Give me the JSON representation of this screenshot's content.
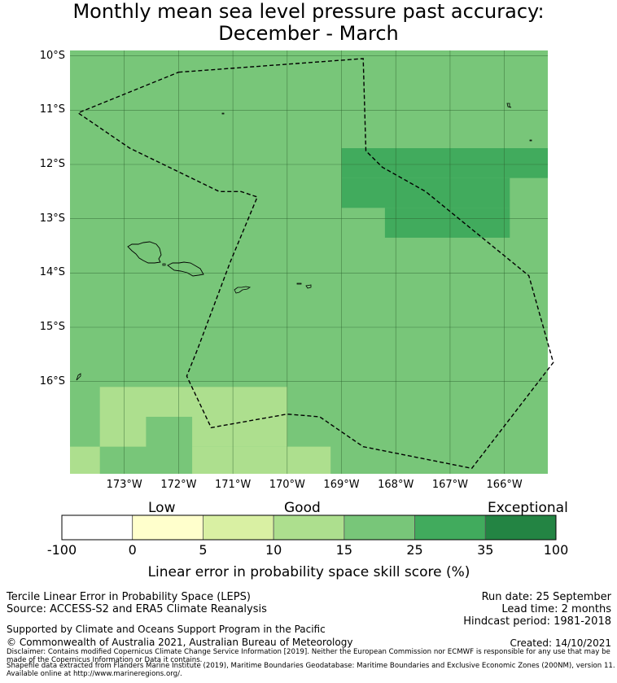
{
  "title": {
    "line1": "Monthly mean sea level pressure past accuracy:",
    "line2": "December - March"
  },
  "map": {
    "lat_labels": [
      "10°S",
      "11°S",
      "12°S",
      "13°S",
      "14°S",
      "15°S",
      "16°S"
    ],
    "lon_labels": [
      "173°W",
      "172°W",
      "171°W",
      "170°W",
      "169°W",
      "168°W",
      "167°W",
      "166°W"
    ],
    "extent": {
      "lon_min": -174.0,
      "lon_max": -165.2,
      "lat_north": -9.9,
      "lat_south": -17.7
    },
    "regions": [
      {
        "name": "exceptional-block-north",
        "lon": [
          -169.0,
          -165.2
        ],
        "lat": [
          -11.7,
          -12.25
        ],
        "colour": "#41ab5d"
      },
      {
        "name": "exceptional-block-west",
        "lon": [
          -169.0,
          -165.9
        ],
        "lat": [
          -12.25,
          -12.8
        ],
        "colour": "#41ab5d"
      },
      {
        "name": "exceptional-block-south",
        "lon": [
          -168.2,
          -165.9
        ],
        "lat": [
          -12.8,
          -13.35
        ],
        "colour": "#41ab5d"
      },
      {
        "name": "good-block-top",
        "lon": [
          -173.45,
          -170.0
        ],
        "lat": [
          -16.1,
          -16.65
        ],
        "colour": "#addf8e"
      },
      {
        "name": "good-block-left",
        "lon": [
          -173.45,
          -172.6
        ],
        "lat": [
          -16.65,
          -17.2
        ],
        "colour": "#addf8e"
      },
      {
        "name": "good-block-right",
        "lon": [
          -171.75,
          -170.0
        ],
        "lat": [
          -16.65,
          -17.2
        ],
        "colour": "#addf8e"
      },
      {
        "name": "good-block-bottom-right",
        "lon": [
          -171.75,
          -169.2
        ],
        "lat": [
          -17.2,
          -17.7
        ],
        "colour": "#addf8e"
      },
      {
        "name": "good-block-bottom-left",
        "lon": [
          -174.0,
          -173.45
        ],
        "lat": [
          -17.2,
          -17.7
        ],
        "colour": "#addf8e"
      }
    ],
    "eez_boundary": [
      [
        -172.0,
        -10.3
      ],
      [
        -168.6,
        -10.05
      ],
      [
        -168.55,
        -11.75
      ],
      [
        -168.25,
        -12.05
      ],
      [
        -167.45,
        -12.5
      ],
      [
        -165.55,
        -14.05
      ],
      [
        -165.1,
        -15.65
      ],
      [
        -166.6,
        -17.6
      ],
      [
        -168.6,
        -17.2
      ],
      [
        -169.4,
        -16.65
      ],
      [
        -170.0,
        -16.6
      ],
      [
        -171.4,
        -16.85
      ],
      [
        -171.85,
        -15.9
      ],
      [
        -171.65,
        -15.4
      ],
      [
        -171.05,
        -13.8
      ],
      [
        -170.55,
        -12.6
      ],
      [
        -170.85,
        -12.5
      ],
      [
        -171.25,
        -12.5
      ],
      [
        -172.9,
        -11.7
      ],
      [
        -173.85,
        -11.05
      ],
      [
        -172.0,
        -10.3
      ]
    ],
    "colours": {
      "background": "#78c679",
      "gridline": "#2c5f2d",
      "coast": "#000000",
      "boundary": "#000000"
    }
  },
  "colorbar": {
    "words": [
      "Low",
      "Good",
      "Exceptional"
    ],
    "ticks": [
      "-100",
      "0",
      "5",
      "10",
      "15",
      "25",
      "35",
      "100"
    ],
    "colours": [
      "#ffffff",
      "#ffffcc",
      "#d9f0a3",
      "#addf8e",
      "#78c679",
      "#41ab5d",
      "#238443"
    ],
    "label": "Linear error in probability space skill score (%)"
  },
  "footer": {
    "product": "Tercile Linear Error in Probability Space (LEPS)",
    "source": "Source: ACCESS-S2 and ERA5 Climate Reanalysis",
    "run_date": "Run date: 25 September",
    "lead_time": "Lead time: 2 months",
    "hindcast": "Hindcast period: 1981-2018",
    "supported": "Supported by Climate and Oceans Support Program in the Pacific",
    "copyright": "© Commonwealth of Australia 2021, Australian Bureau of Meteorology",
    "created": "Created: 14/10/2021",
    "disclaimer": "Disclaimer: Contains modified Copernicus Climate Change Service Information [2019]. Neither the European Commission nor ECMWF is responsible for any use that may be made of the Copernicus Information or Data it contains.",
    "shapefile": "Shapefile data extracted from Flanders Marine Institute (2019), Maritime Boundaries Geodatabase: Maritime Boundaries and Exclusive Economic Zones (200NM), version 11. Available online at http://www.marineregions.org/."
  }
}
